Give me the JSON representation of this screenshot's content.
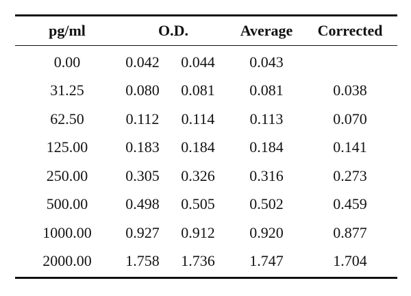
{
  "table": {
    "headers": {
      "concentration": "pg/ml",
      "od": "O.D.",
      "average": "Average",
      "corrected": "Corrected"
    },
    "rows": [
      {
        "conc": "0.00",
        "od1": "0.042",
        "od2": "0.044",
        "avg": "0.043",
        "corr": ""
      },
      {
        "conc": "31.25",
        "od1": "0.080",
        "od2": "0.081",
        "avg": "0.081",
        "corr": "0.038"
      },
      {
        "conc": "62.50",
        "od1": "0.112",
        "od2": "0.114",
        "avg": "0.113",
        "corr": "0.070"
      },
      {
        "conc": "125.00",
        "od1": "0.183",
        "od2": "0.184",
        "avg": "0.184",
        "corr": "0.141"
      },
      {
        "conc": "250.00",
        "od1": "0.305",
        "od2": "0.326",
        "avg": "0.316",
        "corr": "0.273"
      },
      {
        "conc": "500.00",
        "od1": "0.498",
        "od2": "0.505",
        "avg": "0.502",
        "corr": "0.459"
      },
      {
        "conc": "1000.00",
        "od1": "0.927",
        "od2": "0.912",
        "avg": "0.920",
        "corr": "0.877"
      },
      {
        "conc": "2000.00",
        "od1": "1.758",
        "od2": "1.736",
        "avg": "1.747",
        "corr": "1.704"
      }
    ]
  }
}
